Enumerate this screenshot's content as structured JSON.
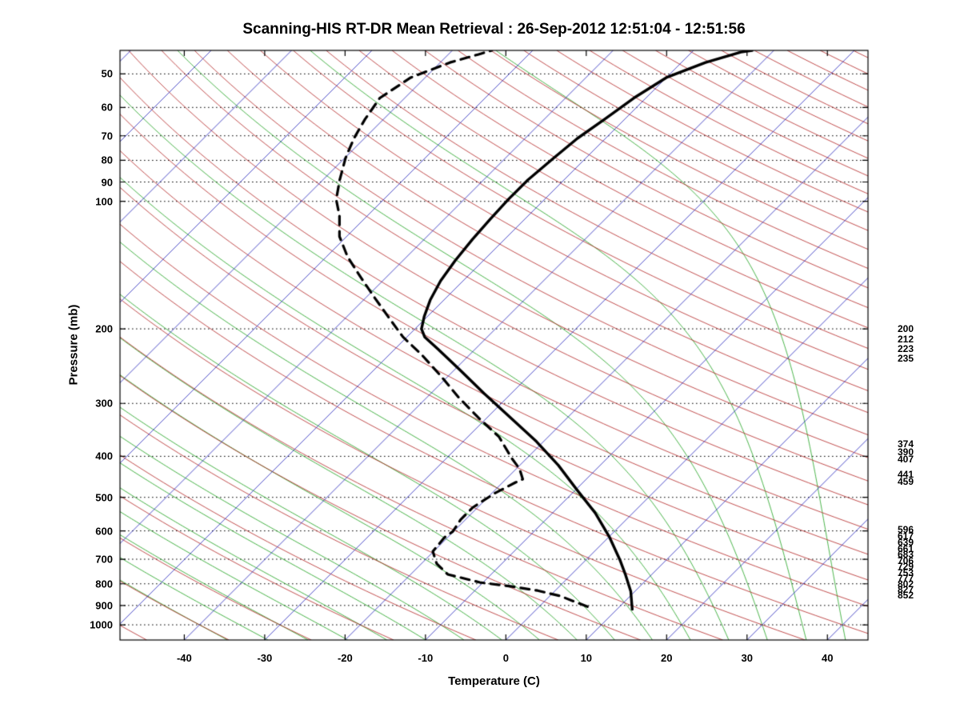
{
  "chart_data": {
    "type": "line",
    "subtype": "skewT_logP_sounding",
    "title": "Scanning-HIS RT-DR Mean Retrieval : 26-Sep-2012 12:51:04 - 12:51:56",
    "xlabel": "Temperature (C)",
    "ylabel": "Pressure (mb)",
    "x_ticks": [
      -40,
      -30,
      -20,
      -10,
      0,
      10,
      20,
      30,
      40
    ],
    "y_ticks": [
      50,
      60,
      70,
      80,
      90,
      100,
      200,
      300,
      400,
      500,
      600,
      700,
      800,
      900,
      1000
    ],
    "x_range": [
      -48,
      45
    ],
    "pressure_range_mb": [
      44,
      1086
    ],
    "skew_deg": 45,
    "grid": "dotted horizontal isobars at labeled pressure ticks",
    "legend_position": "none",
    "right_pressure_labels": [
      "200",
      "212",
      "223",
      "235",
      "374",
      "390",
      "407",
      "441",
      "459",
      "596",
      "617",
      "639",
      "661",
      "683",
      "706",
      "729",
      "753",
      "777",
      "802",
      "827",
      "852"
    ],
    "series": [
      {
        "name": "temperature_profile",
        "style": "solid",
        "color": "#000000",
        "width": 3.4,
        "points_p_t": [
          [
            919,
            11.9
          ],
          [
            834,
            9.5
          ],
          [
            765,
            6.9
          ],
          [
            702,
            4.2
          ],
          [
            619,
            0.0
          ],
          [
            544,
            -4.7
          ],
          [
            478,
            -10.0
          ],
          [
            420,
            -15.2
          ],
          [
            369,
            -20.9
          ],
          [
            324,
            -27.1
          ],
          [
            284,
            -33.4
          ],
          [
            249,
            -39.5
          ],
          [
            223,
            -44.7
          ],
          [
            209,
            -47.8
          ],
          [
            200,
            -49.2
          ],
          [
            187,
            -50.4
          ],
          [
            171,
            -51.7
          ],
          [
            154,
            -52.8
          ],
          [
            138,
            -53.5
          ],
          [
            123,
            -54.0
          ],
          [
            110,
            -54.3
          ],
          [
            99,
            -54.5
          ],
          [
            89,
            -54.5
          ],
          [
            79,
            -54.0
          ],
          [
            71,
            -53.5
          ],
          [
            64,
            -52.5
          ],
          [
            57,
            -51.5
          ],
          [
            51,
            -50.0
          ],
          [
            47,
            -47.0
          ],
          [
            44.4,
            -43.9
          ],
          [
            44,
            -42.7
          ]
        ]
      },
      {
        "name": "dewpoint_profile",
        "style": "dashed",
        "color": "#000000",
        "width": 3.2,
        "points_p_t": [
          [
            906,
            6.0
          ],
          [
            855,
            1.3
          ],
          [
            830,
            -2.2
          ],
          [
            812,
            -5.9
          ],
          [
            794,
            -10.4
          ],
          [
            760,
            -15.4
          ],
          [
            717,
            -18.1
          ],
          [
            671,
            -20.1
          ],
          [
            621,
            -20.4
          ],
          [
            602,
            -20.1
          ],
          [
            564,
            -20.6
          ],
          [
            528,
            -20.6
          ],
          [
            488,
            -19.6
          ],
          [
            461,
            -18.4
          ],
          [
            453,
            -17.9
          ],
          [
            428,
            -19.6
          ],
          [
            404,
            -21.9
          ],
          [
            360,
            -26.1
          ],
          [
            324,
            -31.1
          ],
          [
            290,
            -36.1
          ],
          [
            258,
            -41.0
          ],
          [
            230,
            -46.0
          ],
          [
            209,
            -50.5
          ],
          [
            187,
            -54.9
          ],
          [
            168,
            -59.1
          ],
          [
            151,
            -63.2
          ],
          [
            135,
            -67.4
          ],
          [
            121,
            -70.9
          ],
          [
            108,
            -73.5
          ],
          [
            99,
            -75.9
          ],
          [
            89,
            -77.9
          ],
          [
            79,
            -79.9
          ],
          [
            71,
            -81.3
          ],
          [
            64,
            -82.3
          ],
          [
            57,
            -83.1
          ],
          [
            51,
            -81.8
          ],
          [
            47,
            -78.8
          ],
          [
            45,
            -76.3
          ],
          [
            44,
            -75.1
          ]
        ]
      }
    ],
    "background_lines": {
      "isotherms": {
        "color": "#2222bb",
        "t_start": -120,
        "t_end": 40,
        "step": 10,
        "width": 0.8
      },
      "dry_adiabats": {
        "color": "#b22222",
        "theta_start": -50,
        "theta_end": 320,
        "step": 10,
        "width": 0.8
      },
      "moist_adiabats": {
        "color": "#16a016",
        "thetaw_start": -40,
        "thetaw_end": 40,
        "step": 5,
        "width": 0.8
      },
      "isobars": {
        "color": "#000000",
        "style": "dotted",
        "values": [
          50,
          60,
          70,
          80,
          90,
          100,
          200,
          300,
          400,
          500,
          600,
          700,
          800,
          900,
          1000
        ],
        "width": 1
      }
    },
    "frame_color": "#000000"
  }
}
